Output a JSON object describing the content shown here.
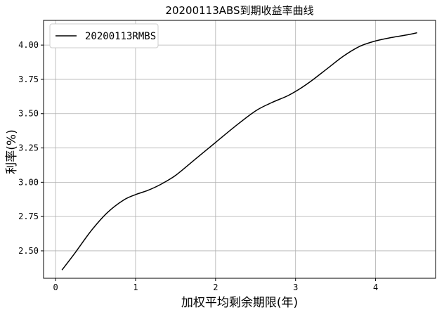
{
  "chart_data": {
    "type": "line",
    "title": "20200113ABS到期收益率曲线",
    "xlabel": "加权平均剩余期限(年)",
    "ylabel": "利率(%)",
    "xlim": [
      -0.15,
      4.75
    ],
    "ylim": [
      2.3,
      4.18
    ],
    "xticks": [
      0,
      1,
      2,
      3,
      4
    ],
    "yticks": [
      2.5,
      2.75,
      3.0,
      3.25,
      3.5,
      3.75,
      4.0
    ],
    "xtick_labels": [
      "0",
      "1",
      "2",
      "3",
      "4"
    ],
    "ytick_labels": [
      "2.50",
      "2.75",
      "3.00",
      "3.25",
      "3.50",
      "3.75",
      "4.00"
    ],
    "grid": true,
    "legend_position": "top-left",
    "series": [
      {
        "name": "20200113RMBS",
        "color": "#000000",
        "x": [
          0.08,
          0.25,
          0.45,
          0.65,
          0.85,
          1.0,
          1.15,
          1.3,
          1.5,
          1.75,
          2.0,
          2.25,
          2.5,
          2.7,
          2.9,
          3.05,
          3.2,
          3.4,
          3.6,
          3.8,
          4.0,
          4.2,
          4.4,
          4.52
        ],
        "y": [
          2.36,
          2.49,
          2.65,
          2.78,
          2.87,
          2.91,
          2.94,
          2.98,
          3.05,
          3.17,
          3.29,
          3.41,
          3.52,
          3.58,
          3.63,
          3.68,
          3.74,
          3.83,
          3.92,
          3.99,
          4.03,
          4.055,
          4.075,
          4.09
        ]
      }
    ]
  }
}
